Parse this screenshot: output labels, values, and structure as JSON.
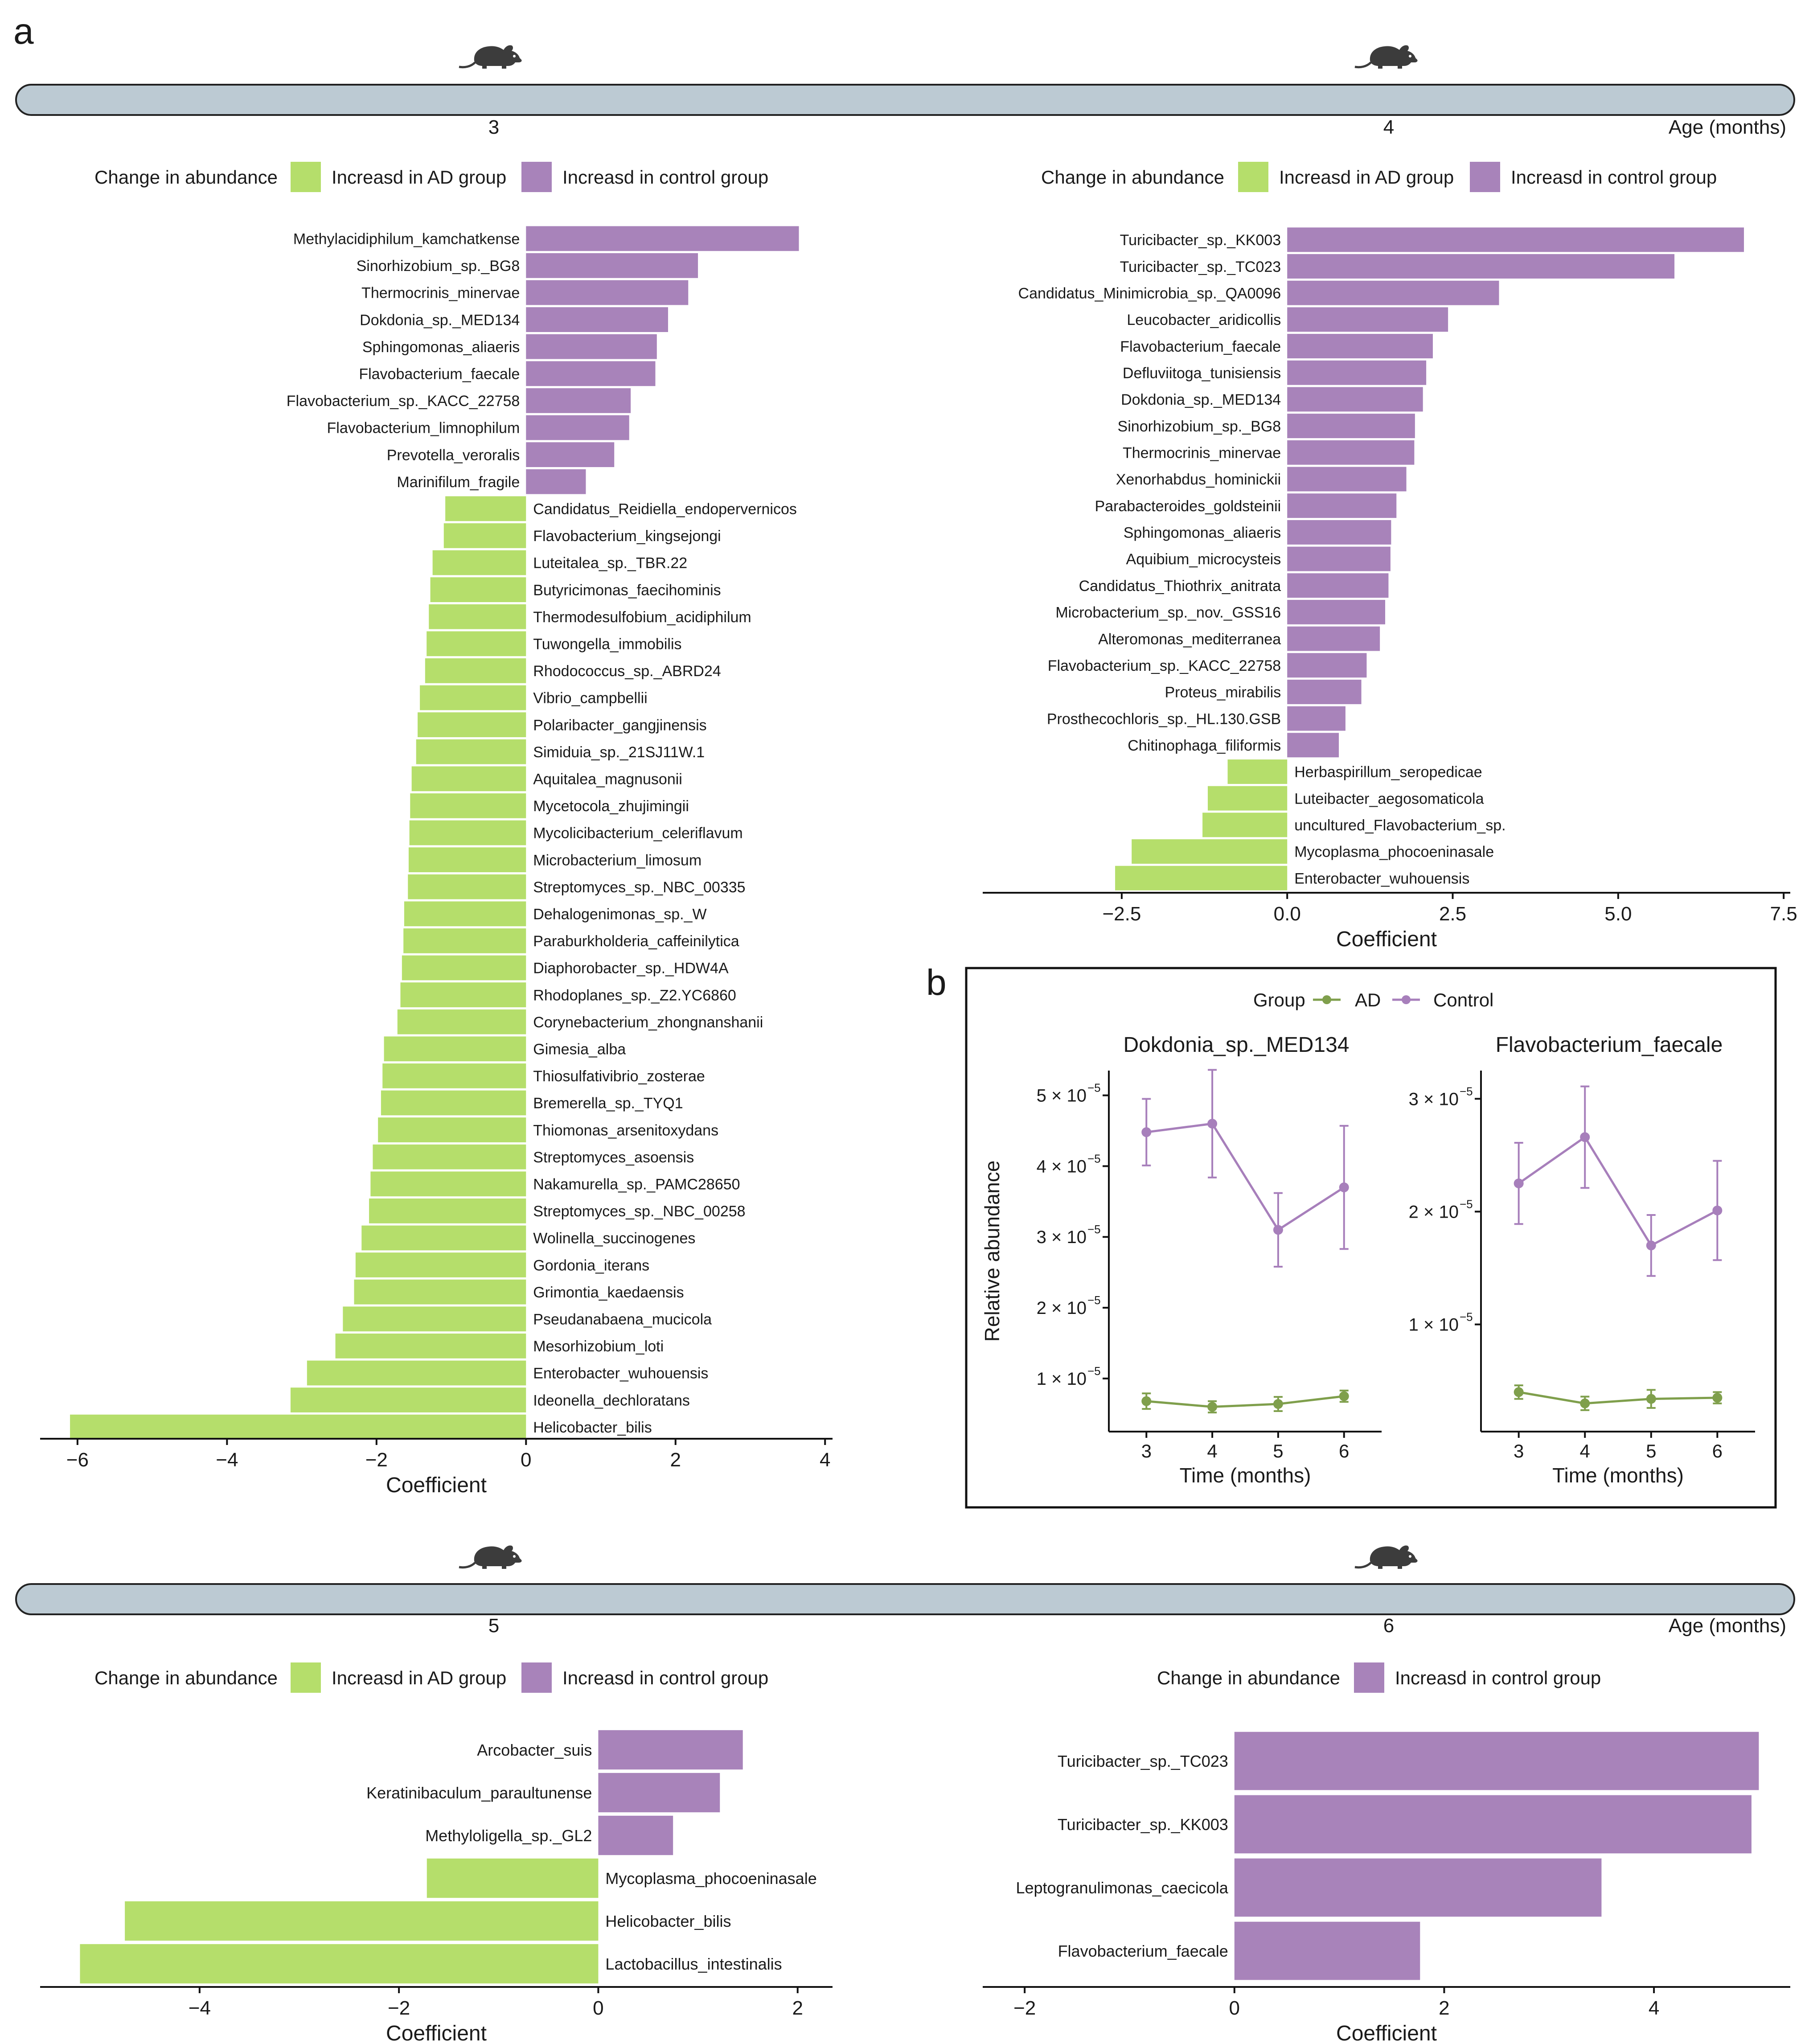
{
  "panel_labels": {
    "a": "a",
    "b": "b"
  },
  "timeline": {
    "axis_label": "Age (months)",
    "mouse_icon": "mouse-icon"
  },
  "legend": {
    "title": "Change in abundance",
    "ad": "Increasd in AD group",
    "control": "Increasd in control group"
  },
  "colors": {
    "ad_bar": "#b5de6b",
    "control_bar": "#a883ba",
    "timeline_fill": "#bccad3",
    "ad_line": "#7f9f4c",
    "control_line": "#a77fbb"
  },
  "chart_data": [
    {
      "id": "m3",
      "type": "bar",
      "orientation": "horizontal",
      "month": "3",
      "xlabel": "Coefficient",
      "xlim": [
        -6.5,
        4.1
      ],
      "xticks": [
        "-6",
        "-4",
        "-2",
        "0",
        "2",
        "4"
      ],
      "tick_values": [
        -6,
        -4,
        -2,
        0,
        2,
        4
      ],
      "legend": [
        "ad",
        "control"
      ],
      "categories": [
        "Methylacidiphilum_kamchatkense",
        "Sinorhizobium_sp._BG8",
        "Thermocrinis_minervae",
        "Dokdonia_sp._MED134",
        "Sphingomonas_aliaeris",
        "Flavobacterium_faecale",
        "Flavobacterium_sp._KACC_22758",
        "Flavobacterium_limnophilum",
        "Prevotella_veroralis",
        "Marinifilum_fragile",
        "Candidatus_Reidiella_endopervernicos",
        "Flavobacterium_kingsejongi",
        "Luteitalea_sp._TBR.22",
        "Butyricimonas_faecihominis",
        "Thermodesulfobium_acidiphilum",
        "Tuwongella_immobilis",
        "Rhodococcus_sp._ABRD24",
        "Vibrio_campbellii",
        "Polaribacter_gangjinensis",
        "Simiduia_sp._21SJ11W.1",
        "Aquitalea_magnusonii",
        "Mycetocola_zhujimingii",
        "Mycolicibacterium_celeriflavum",
        "Microbacterium_limosum",
        "Streptomyces_sp._NBC_00335",
        "Dehalogenimonas_sp._W",
        "Paraburkholderia_caffeinilytica",
        "Diaphorobacter_sp._HDW4A",
        "Rhodoplanes_sp._Z2.YC6860",
        "Corynebacterium_zhongnanshanii",
        "Gimesia_alba",
        "Thiosulfativibrio_zosterae",
        "Bremerella_sp._TYQ1",
        "Thiomonas_arsenitoxydans",
        "Streptomyces_asoensis",
        "Nakamurella_sp._PAMC28650",
        "Streptomyces_sp._NBC_00258",
        "Wolinella_succinogenes",
        "Gordonia_iterans",
        "Grimontia_kaedaensis",
        "Pseudanabaena_mucicola",
        "Mesorhizobium_loti",
        "Enterobacter_wuhouensis",
        "Ideonella_dechloratans",
        "Helicobacter_bilis"
      ],
      "values": [
        3.65,
        2.3,
        2.17,
        1.9,
        1.75,
        1.73,
        1.4,
        1.38,
        1.18,
        0.8,
        -1.08,
        -1.1,
        -1.25,
        -1.28,
        -1.3,
        -1.33,
        -1.35,
        -1.42,
        -1.45,
        -1.47,
        -1.53,
        -1.55,
        -1.56,
        -1.57,
        -1.58,
        -1.63,
        -1.64,
        -1.66,
        -1.68,
        -1.72,
        -1.9,
        -1.92,
        -1.94,
        -1.98,
        -2.05,
        -2.08,
        -2.1,
        -2.2,
        -2.28,
        -2.3,
        -2.45,
        -2.55,
        -2.93,
        -3.15,
        -6.1
      ]
    },
    {
      "id": "m4",
      "type": "bar",
      "orientation": "horizontal",
      "month": "4",
      "xlabel": "Coefficient",
      "xlim": [
        -4.6,
        7.6
      ],
      "xticks": [
        "-2.5",
        "0.0",
        "2.5",
        "5.0",
        "7.5"
      ],
      "tick_values": [
        -2.5,
        0,
        2.5,
        5,
        7.5
      ],
      "legend": [
        "ad",
        "control"
      ],
      "categories": [
        "Turicibacter_sp._KK003",
        "Turicibacter_sp._TC023",
        "Candidatus_Minimicrobia_sp._QA0096",
        "Leucobacter_aridicollis",
        "Flavobacterium_faecale",
        "Defluviitoga_tunisiensis",
        "Dokdonia_sp._MED134",
        "Sinorhizobium_sp._BG8",
        "Thermocrinis_minervae",
        "Xenorhabdus_hominickii",
        "Parabacteroides_goldsteinii",
        "Sphingomonas_aliaeris",
        "Aquibium_microcysteis",
        "Candidatus_Thiothrix_anitrata",
        "Microbacterium_sp._nov._GSS16",
        "Alteromonas_mediterranea",
        "Flavobacterium_sp._KACC_22758",
        "Proteus_mirabilis",
        "Prosthecochloris_sp._HL.130.GSB",
        "Chitinophaga_filiformis",
        "Herbaspirillum_seropedicae",
        "Luteibacter_aegosomaticola",
        "uncultured_Flavobacterium_sp.",
        "Mycoplasma_phocoeninasale",
        "Enterobacter_wuhouensis"
      ],
      "values": [
        6.9,
        5.85,
        3.2,
        2.43,
        2.2,
        2.1,
        2.05,
        1.93,
        1.92,
        1.8,
        1.65,
        1.57,
        1.56,
        1.53,
        1.48,
        1.4,
        1.2,
        1.12,
        0.88,
        0.78,
        -0.9,
        -1.2,
        -1.28,
        -2.35,
        -2.6
      ]
    },
    {
      "id": "m5",
      "type": "bar",
      "orientation": "horizontal",
      "month": "5",
      "xlabel": "Coefficient",
      "xlim": [
        -5.6,
        2.35
      ],
      "xticks": [
        "-4",
        "-2",
        "0",
        "2"
      ],
      "tick_values": [
        -4,
        -2,
        0,
        2
      ],
      "legend": [
        "ad",
        "control"
      ],
      "categories": [
        "Arcobacter_suis",
        "Keratinibaculum_paraultunense",
        "Methyloligella_sp._GL2",
        "Mycoplasma_phocoeninasale",
        "Helicobacter_bilis",
        "Lactobacillus_intestinalis"
      ],
      "values": [
        1.45,
        1.22,
        0.75,
        -1.72,
        -4.75,
        -5.2
      ]
    },
    {
      "id": "m6",
      "type": "bar",
      "orientation": "horizontal",
      "month": "6",
      "xlabel": "Coefficient",
      "xlim": [
        -2.4,
        5.3
      ],
      "xticks": [
        "-2",
        "0",
        "2",
        "4"
      ],
      "tick_values": [
        -2,
        0,
        2,
        4
      ],
      "legend": [
        "control"
      ],
      "categories": [
        "Turicibacter_sp._TC023",
        "Turicibacter_sp._KK003",
        "Leptogranulimonas_caecicola",
        "Flavobacterium_faecale"
      ],
      "values": [
        5.0,
        4.93,
        3.5,
        1.77
      ]
    },
    {
      "id": "dokdonia",
      "type": "line",
      "title": "Dokdonia_sp._MED134",
      "xlabel": "Time (months)",
      "ylabel": "Relative abundance",
      "x": [
        3,
        4,
        5,
        6
      ],
      "ylim": [
        0.25,
        5.35
      ],
      "yticks": [
        1,
        2,
        3,
        4,
        5
      ],
      "ytick_labels": [
        "1 × 10",
        "2 × 10",
        "3 × 10",
        "4 × 10",
        "5 × 10"
      ],
      "ytick_exp": "−5",
      "legend_title": "Group",
      "series": [
        {
          "name": "AD",
          "values": [
            0.68,
            0.6,
            0.64,
            0.75
          ],
          "err": [
            0.11,
            0.08,
            0.1,
            0.08
          ]
        },
        {
          "name": "Control",
          "values": [
            4.48,
            4.6,
            3.1,
            3.7
          ],
          "err": [
            0.47,
            0.76,
            0.52,
            0.87
          ]
        }
      ]
    },
    {
      "id": "flavo",
      "type": "line",
      "title": "Flavobacterium_faecale",
      "xlabel": "Time (months)",
      "ylabel": "",
      "x": [
        3,
        4,
        5,
        6
      ],
      "ylim": [
        0.05,
        3.25
      ],
      "yticks": [
        1,
        2,
        3
      ],
      "ytick_labels": [
        "1 × 10",
        "2 × 10",
        "3 × 10"
      ],
      "ytick_exp": "−5",
      "series": [
        {
          "name": "AD",
          "values": [
            0.4,
            0.3,
            0.34,
            0.35
          ],
          "err": [
            0.06,
            0.06,
            0.08,
            0.05
          ]
        },
        {
          "name": "Control",
          "values": [
            2.25,
            2.66,
            1.7,
            2.01
          ],
          "err": [
            0.36,
            0.45,
            0.27,
            0.44
          ]
        }
      ]
    }
  ]
}
